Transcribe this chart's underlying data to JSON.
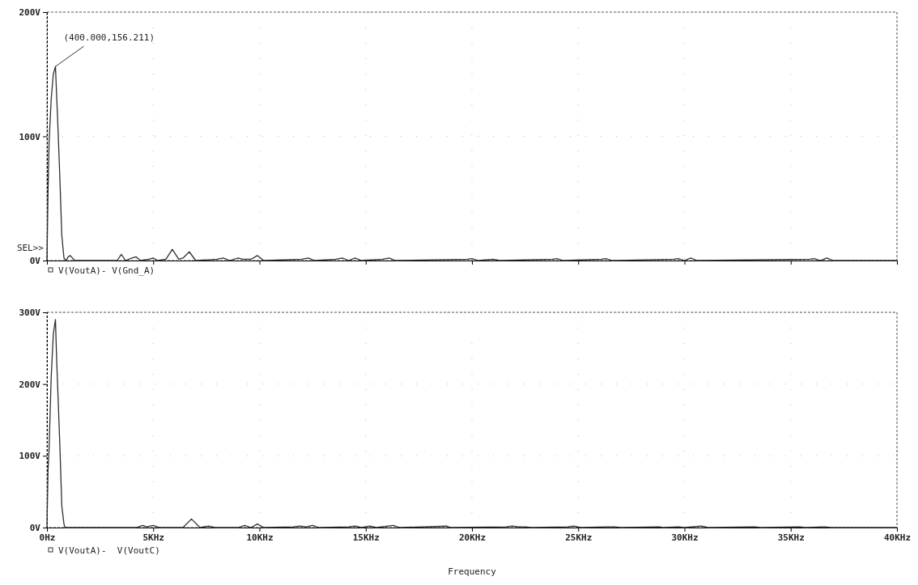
{
  "chart_data": [
    {
      "type": "line",
      "xlim": [
        0,
        40
      ],
      "xticks": [
        {
          "value": 0,
          "label": null
        },
        {
          "value": 5,
          "label": null
        },
        {
          "value": 10,
          "label": null
        },
        {
          "value": 15,
          "label": null
        },
        {
          "value": 20,
          "label": null
        },
        {
          "value": 25,
          "label": null
        },
        {
          "value": 30,
          "label": null
        },
        {
          "value": 35,
          "label": null
        },
        {
          "value": 40,
          "label": null
        }
      ],
      "ylim": [
        0,
        200
      ],
      "yticks": [
        {
          "value": 0,
          "label": "0V"
        },
        {
          "value": 100,
          "label": "100V"
        },
        {
          "value": 200,
          "label": "200V"
        }
      ],
      "tick_labels": "y",
      "grid": true,
      "legend": "bottom left",
      "annotations": [
        {
          "text": "(400.000,156.211)",
          "x": 0.4,
          "y": 156.211
        },
        "SEL>>"
      ],
      "series": [
        {
          "name": "V(VoutA)- V(Gnd_A)",
          "color": "#303030",
          "x": [
            0,
            0.05,
            0.1,
            0.2,
            0.3,
            0.4,
            0.45,
            0.5,
            0.6,
            0.7,
            0.8,
            0.9,
            1.0,
            1.1,
            1.3,
            3.3,
            3.5,
            3.7,
            4.0,
            4.2,
            4.4,
            4.8,
            5.0,
            5.2,
            5.6,
            5.9,
            6.2,
            6.4,
            6.7,
            7.0,
            8.0,
            8.3,
            8.6,
            9.0,
            9.2,
            9.6,
            9.9,
            10.2,
            12.0,
            12.3,
            12.6,
            13.6,
            13.9,
            14.2,
            14.5,
            14.8,
            15.8,
            16.1,
            16.4,
            19.8,
            20.0,
            20.3,
            21.0,
            21.3,
            23.8,
            24.0,
            24.3,
            26.1,
            26.3,
            26.6,
            29.5,
            29.7,
            30.0,
            30.3,
            30.6,
            35.9,
            36.1,
            36.4,
            36.7,
            37.0,
            40
          ],
          "values": [
            0,
            55,
            95,
            130,
            150,
            156.2,
            135,
            115,
            70,
            20,
            2,
            0,
            3,
            4,
            0,
            0,
            5,
            0,
            2,
            3,
            0,
            1,
            2,
            0,
            1,
            9,
            1,
            2,
            7,
            0,
            1,
            2,
            0,
            2,
            1,
            1,
            4,
            0,
            1,
            2,
            0,
            1,
            2,
            0,
            2,
            0,
            1,
            2,
            0,
            1,
            1.5,
            0,
            1,
            0,
            1,
            1.5,
            0,
            1,
            1.5,
            0,
            1,
            1.5,
            0,
            2,
            0,
            1,
            1.5,
            0,
            2,
            0,
            0
          ]
        }
      ]
    },
    {
      "type": "line",
      "xlim": [
        0,
        40
      ],
      "xticks": [
        {
          "value": 0,
          "label": "0Hz"
        },
        {
          "value": 5,
          "label": "5KHz"
        },
        {
          "value": 10,
          "label": "10KHz"
        },
        {
          "value": 15,
          "label": "15KHz"
        },
        {
          "value": 20,
          "label": "20KHz"
        },
        {
          "value": 25,
          "label": "25KHz"
        },
        {
          "value": 30,
          "label": "30KHz"
        },
        {
          "value": 35,
          "label": "35KHz"
        },
        {
          "value": 40,
          "label": "40KHz"
        }
      ],
      "ylim": [
        0,
        300
      ],
      "yticks": [
        {
          "value": 0,
          "label": "0V"
        },
        {
          "value": 100,
          "label": "100V"
        },
        {
          "value": 200,
          "label": "200V"
        },
        {
          "value": 300,
          "label": "300V"
        }
      ],
      "xlabel": "Frequency",
      "grid": true,
      "legend": "bottom left",
      "series": [
        {
          "name": "V(VoutA)-  V(VoutC)",
          "color": "#303030",
          "x": [
            0,
            0.05,
            0.1,
            0.2,
            0.3,
            0.4,
            0.45,
            0.5,
            0.6,
            0.7,
            0.8,
            0.85,
            4.2,
            4.5,
            4.7,
            5.0,
            5.3,
            6.4,
            6.8,
            7.2,
            7.6,
            7.9,
            9.0,
            9.3,
            9.6,
            9.9,
            10.2,
            11.6,
            11.9,
            12.2,
            12.5,
            12.8,
            14.2,
            14.5,
            14.8,
            15.2,
            15.5,
            16.3,
            16.6,
            18.8,
            19.0,
            21.6,
            21.9,
            22.2,
            22.5,
            22.8,
            24.5,
            24.8,
            25.1,
            26.4,
            26.7,
            27.0,
            28.8,
            29.0,
            29.7,
            30.0,
            30.8,
            31.1,
            33.3,
            33.6,
            35.4,
            35.7,
            36.6,
            36.9,
            40
          ],
          "values": [
            0,
            80,
            110,
            210,
            270,
            290,
            240,
            200,
            120,
            30,
            5,
            0,
            0,
            3,
            1,
            3,
            0,
            0,
            12,
            0,
            2,
            0,
            0,
            3,
            0,
            5,
            0,
            1,
            2,
            1,
            3,
            0,
            1,
            2,
            0,
            2,
            0,
            3,
            0,
            2,
            0,
            1,
            2,
            1,
            1,
            0,
            1,
            2,
            0,
            1,
            1,
            0,
            1,
            0,
            1,
            0,
            2,
            0,
            1,
            0,
            1,
            0,
            1,
            0,
            0
          ]
        }
      ]
    }
  ]
}
